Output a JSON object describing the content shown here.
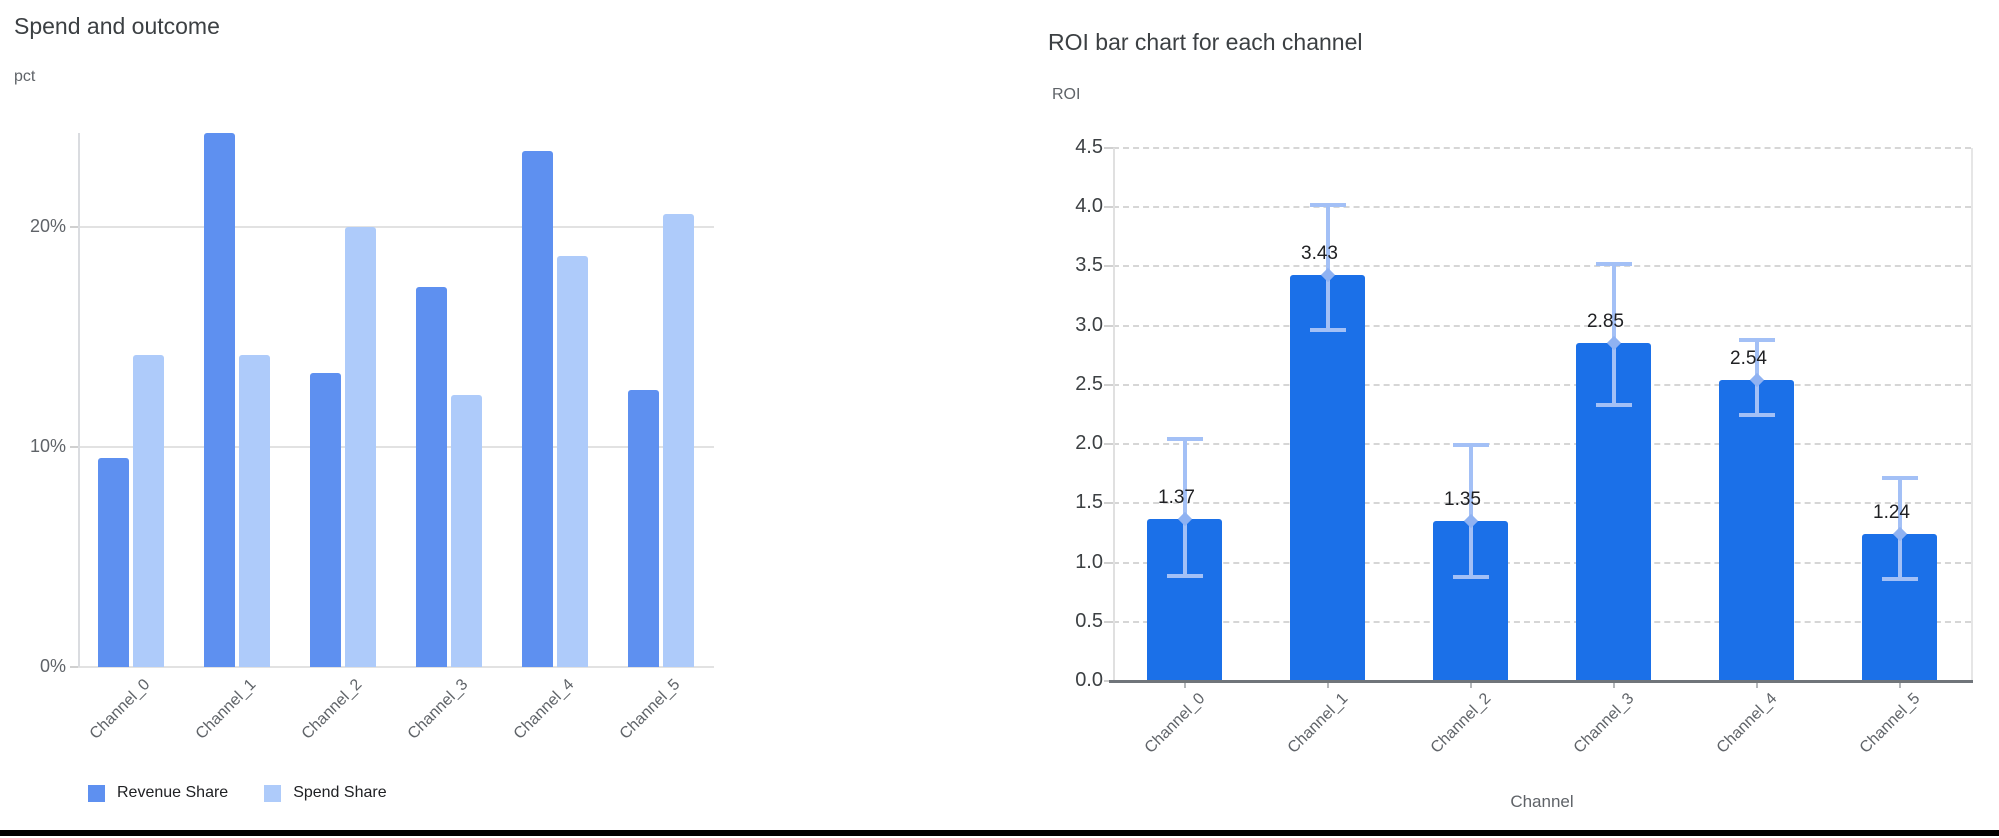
{
  "page": {
    "background": "#ffffff",
    "bottom_border_color": "#000000"
  },
  "left_chart": {
    "title": "Spend and outcome",
    "y_unit_label": "pct"
  },
  "right_chart": {
    "title": "ROI bar chart for each channel",
    "y_unit_label": "ROI",
    "x_axis_title": "Channel"
  },
  "chart_data": [
    {
      "type": "bar",
      "title": "Spend and outcome",
      "ylabel": "pct",
      "xlabel": "",
      "categories": [
        "Channel_0",
        "Channel_1",
        "Channel_2",
        "Channel_3",
        "Channel_4",
        "Channel_5"
      ],
      "series": [
        {
          "name": "Revenue Share",
          "color": "#5E90F0",
          "values": [
            9.5,
            24.3,
            13.4,
            17.3,
            23.5,
            12.6
          ]
        },
        {
          "name": "Spend Share",
          "color": "#AECBFA",
          "values": [
            14.2,
            14.2,
            20,
            12.4,
            18.7,
            20.6
          ]
        }
      ],
      "y_ticks": [
        {
          "value": 0,
          "label": "0%"
        },
        {
          "value": 10,
          "label": "10%"
        },
        {
          "value": 20,
          "label": "20%"
        }
      ],
      "ylim": [
        0,
        24.3
      ],
      "grid": "horizontal-solid",
      "legend_position": "bottom"
    },
    {
      "type": "bar",
      "title": "ROI bar chart for each channel",
      "ylabel": "ROI",
      "xlabel": "Channel",
      "categories": [
        "Channel_0",
        "Channel_1",
        "Channel_2",
        "Channel_3",
        "Channel_4",
        "Channel_5"
      ],
      "values": [
        1.37,
        3.43,
        1.35,
        2.85,
        2.54,
        1.24
      ],
      "value_labels": [
        "1.37",
        "3.43",
        "1.35",
        "2.85",
        "2.54",
        "1.24"
      ],
      "error_low": [
        0.89,
        2.96,
        0.88,
        2.33,
        2.25,
        0.86
      ],
      "error_high": [
        2.04,
        4.02,
        1.99,
        3.52,
        2.88,
        1.71
      ],
      "bar_color": "#1B70E8",
      "error_color": "#A3C0F6",
      "error_marker_color": "#8FB2F2",
      "y_ticks": [
        "0.0",
        "0.5",
        "1.0",
        "1.5",
        "2.0",
        "2.5",
        "3.0",
        "3.5",
        "4.0",
        "4.5"
      ],
      "ylim": [
        0,
        4.5
      ],
      "grid": "horizontal-dashed",
      "legend_position": "none"
    }
  ]
}
